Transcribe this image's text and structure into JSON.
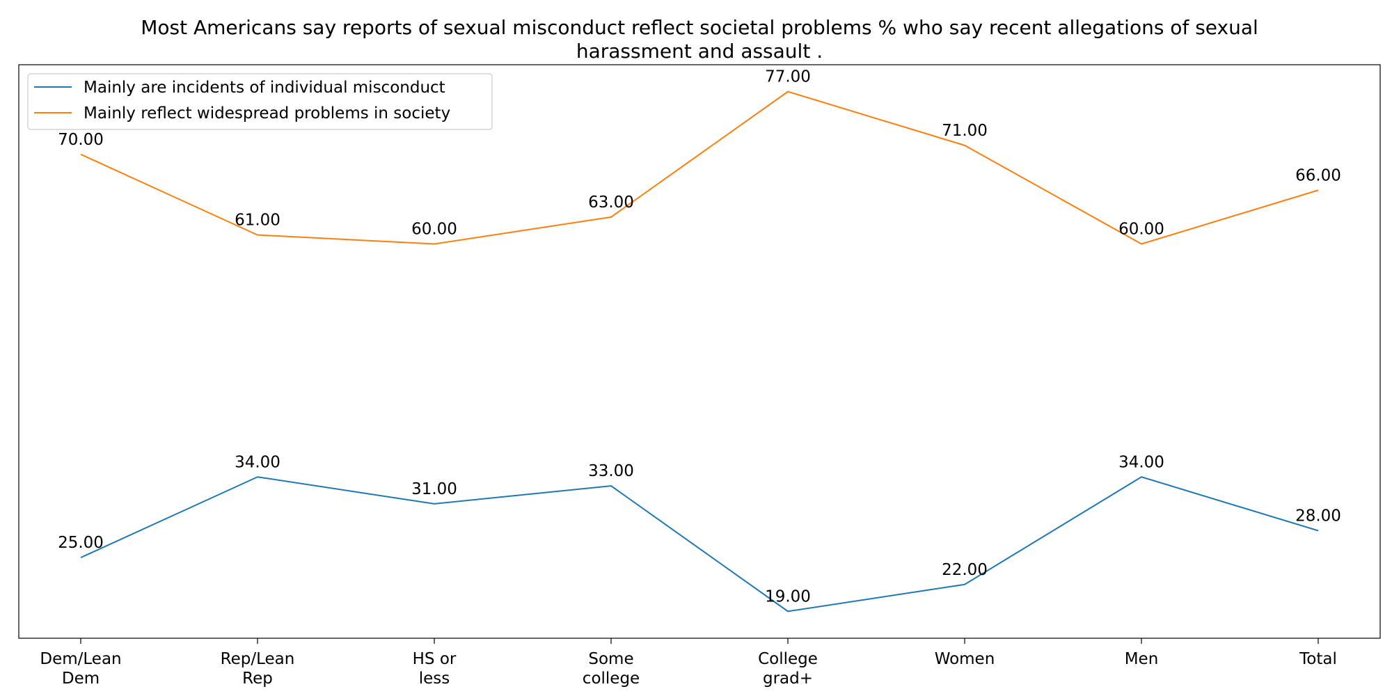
{
  "chart_data": {
    "type": "line",
    "title": [
      "Most Americans say reports of sexual misconduct reflect societal problems % who say recent allegations of sexual",
      "harassment and assault ."
    ],
    "categories": [
      [
        "Dem/Lean",
        "Dem"
      ],
      [
        "Rep/Lean",
        "Rep"
      ],
      [
        "HS or",
        "less"
      ],
      [
        "Some",
        "college"
      ],
      [
        "College",
        "grad+"
      ],
      [
        "Women"
      ],
      [
        "Men"
      ],
      [
        "Total"
      ]
    ],
    "series": [
      {
        "name": "Mainly are incidents of individual misconduct",
        "color": "#1f77b4",
        "values": [
          25,
          34,
          31,
          33,
          19,
          22,
          34,
          28
        ],
        "labels": [
          "25.00",
          "34.00",
          "31.00",
          "33.00",
          "19.00",
          "22.00",
          "34.00",
          "28.00"
        ]
      },
      {
        "name": "Mainly reflect widespread problems in society",
        "color": "#ff7f0e",
        "values": [
          70,
          61,
          60,
          63,
          77,
          71,
          60,
          66
        ],
        "labels": [
          "70.00",
          "61.00",
          "60.00",
          "63.00",
          "77.00",
          "71.00",
          "60.00",
          "66.00"
        ]
      }
    ],
    "ylim": [
      16,
      80
    ],
    "grid": false,
    "legend_position": "upper-left",
    "y_ticks_visible": false,
    "xlabel": "",
    "ylabel": ""
  }
}
